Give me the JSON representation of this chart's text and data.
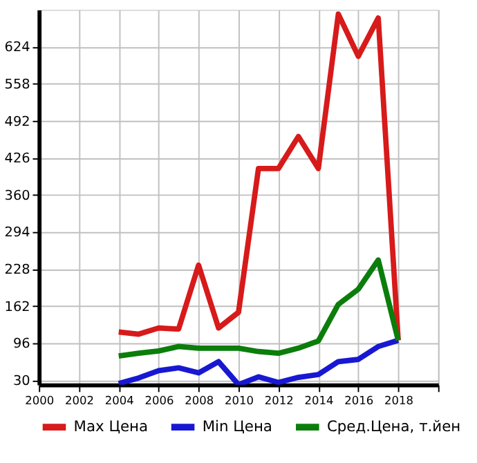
{
  "chart_data": {
    "type": "line",
    "x": [
      2004,
      2005,
      2006,
      2007,
      2008,
      2009,
      2010,
      2011,
      2012,
      2013,
      2014,
      2015,
      2016,
      2017,
      2018
    ],
    "series": [
      {
        "name": "Max Цена",
        "color": "#d71a1a",
        "values": [
          116,
          112,
          123,
          121,
          235,
          123,
          151,
          407,
          407,
          464,
          407,
          682,
          607,
          675,
          101
        ]
      },
      {
        "name": "Min Цена",
        "color": "#1818d2",
        "values": [
          24,
          34,
          47,
          52,
          43,
          63,
          22,
          36,
          26,
          35,
          40,
          63,
          67,
          90,
          101
        ]
      },
      {
        "name": "Сред.Цена, т.йен",
        "color": "#0b7d0b",
        "values": [
          73,
          78,
          82,
          90,
          87,
          87,
          87,
          81,
          78,
          87,
          100,
          165,
          192,
          244,
          101
        ]
      }
    ],
    "xlim": [
      2000,
      2020
    ],
    "xticks": [
      2000,
      2002,
      2004,
      2006,
      2008,
      2010,
      2012,
      2014,
      2016,
      2018,
      {
        "value": 2020,
        "label": null
      }
    ],
    "ylim": [
      22,
      690
    ],
    "yticks": [
      30,
      96,
      162,
      228,
      294,
      360,
      426,
      492,
      558,
      624
    ],
    "grid": true,
    "legend": "bottom",
    "line_style": "solid",
    "marker": "none"
  }
}
